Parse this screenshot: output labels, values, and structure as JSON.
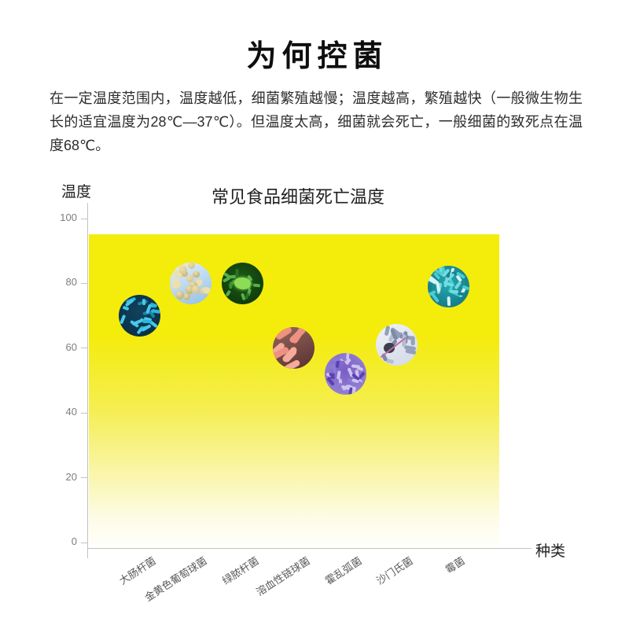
{
  "header": {
    "title": "为何控菌"
  },
  "intro": {
    "text": "在一定温度范围内，温度越低，细菌繁殖越慢；温度越高，繁殖越快（一般微生物生长的适宜温度为28℃—37℃）。但温度太高，细菌就会死亡，一般细菌的致死点在温度68℃。"
  },
  "chart_data": {
    "type": "scatter",
    "title": "常见食品细菌死亡温度",
    "xlabel": "种类",
    "ylabel": "温度",
    "ylim": [
      0,
      100
    ],
    "yticks": [
      0,
      20,
      40,
      60,
      80,
      100
    ],
    "grid": false,
    "legend": false,
    "plot_background": {
      "style": "vertical-gradient",
      "top_color": "#f4ec0b",
      "bottom_color": "#ffffff",
      "area_top_value": 95
    },
    "categories": [
      "大肠杆菌",
      "金黄色葡萄球菌",
      "绿脓杆菌",
      "溶血性链球菌",
      "霍乱弧菌",
      "沙门氏菌",
      "霉菌"
    ],
    "values": [
      70,
      80,
      80,
      60,
      52,
      61,
      79
    ],
    "point_marker": "circular bacteria micrograph"
  },
  "bacteria_icons": [
    {
      "category": "大肠杆菌",
      "icon": "ecoli-micrograph",
      "bg_type": "radial",
      "bg": [
        "#11425e",
        "#082a3f"
      ],
      "shape": "rod",
      "colors": [
        "#2cb6dc",
        "#48c9e9",
        "#1b84a8"
      ],
      "count": 22,
      "rod_len": [
        8,
        13
      ],
      "rod_w": 4
    },
    {
      "category": "金黄色葡萄球菌",
      "icon": "staphylococcus-micrograph",
      "bg_type": "linear",
      "bg": [
        "#e6f2fb",
        "#8fbfe6"
      ],
      "shape": "coccus",
      "colors": [
        "#c9b77a",
        "#d9c994",
        "#ecdfb0"
      ],
      "count": 24,
      "size": [
        7,
        12
      ]
    },
    {
      "category": "绿脓杆菌",
      "icon": "pseudomonas-micrograph",
      "bg_type": "radial",
      "bg": [
        "#1d5c16",
        "#0b3108"
      ],
      "shape": "rod",
      "colors": [
        "#3c9134",
        "#55b04a",
        "#2c7026"
      ],
      "count": 18,
      "rod_len": [
        7,
        12
      ],
      "rod_w": 3.5,
      "center_blob": "#8cdc55"
    },
    {
      "category": "溶血性链球菌",
      "icon": "streptococcus-micrograph",
      "bg_type": "linear",
      "bg": [
        "#96675e",
        "#58302f"
      ],
      "shape": "rod",
      "colors": [
        "#ee9180",
        "#f5ab99",
        "#d97a68"
      ],
      "count": 8,
      "rod_len": [
        18,
        27
      ],
      "rod_w": 8,
      "angle": [
        -58,
        -22
      ]
    },
    {
      "category": "霍乱弧菌",
      "icon": "vibrio-micrograph",
      "bg_type": "radial",
      "bg": [
        "#7a5ec6",
        "#9d8bd8"
      ],
      "shape": "rod",
      "colors": [
        "#5a41b2",
        "#8d7ad4",
        "#cec4ee"
      ],
      "count": 38,
      "rod_len": [
        7,
        12
      ],
      "rod_w": 3.5
    },
    {
      "category": "沙门氏菌",
      "icon": "salmonella-micrograph",
      "bg_type": "linear",
      "bg": [
        "#eff2f8",
        "#d2d9e6"
      ],
      "shape": "rod",
      "colors": [
        "#93a0ba",
        "#b4bfd3",
        "#7e8aa6"
      ],
      "count": 15,
      "rod_len": [
        10,
        16
      ],
      "rod_w": 5,
      "dark_blob": "#3a3f4b",
      "line_color": "#c06ba6"
    },
    {
      "category": "霉菌",
      "icon": "mold-micrograph",
      "bg_type": "radial",
      "bg": [
        "#27a9b1",
        "#0f6d7a"
      ],
      "shape": "rod",
      "colors": [
        "#49ccd2",
        "#73dce0",
        "#17838f",
        "#d5f4f6"
      ],
      "count": 30,
      "rod_len": [
        8,
        14
      ],
      "rod_w": 4
    }
  ]
}
